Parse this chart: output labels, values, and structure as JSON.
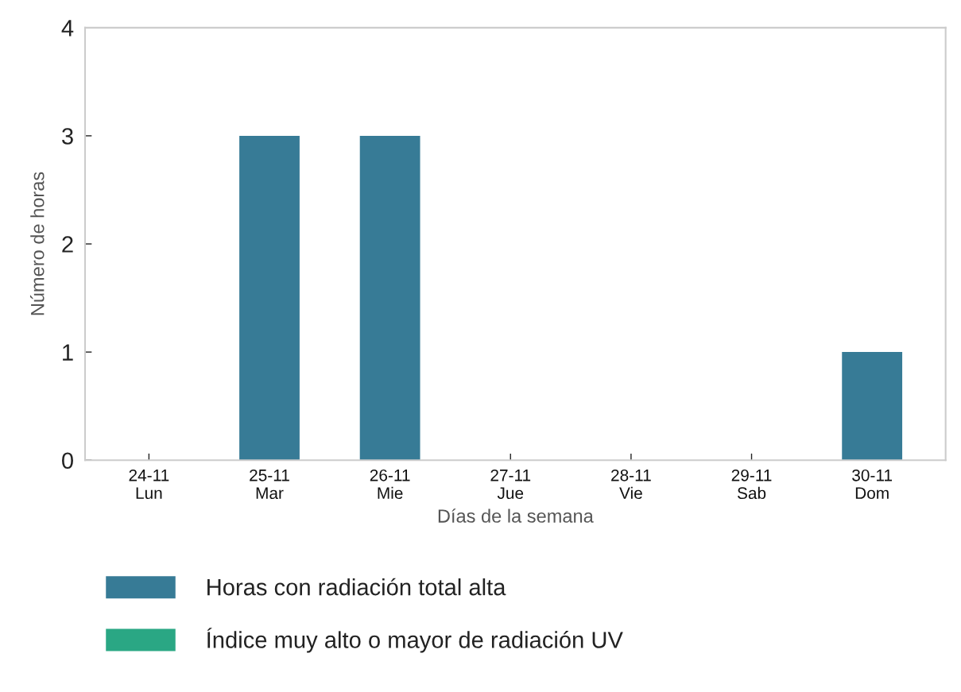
{
  "chart_data": {
    "type": "bar",
    "stacked": true,
    "xlabel": "Días de la semana",
    "ylabel": "Número de horas",
    "categories": [
      "24-11\nLun",
      "25-11\nMar",
      "26-11\nMie",
      "27-11\nJue",
      "28-11\nVie",
      "29-11\nSab",
      "30-11\nDom"
    ],
    "series": [
      {
        "name": "Horas con radiación total alta",
        "color": "#377b96",
        "values": [
          0,
          3,
          3,
          0,
          0,
          0,
          1
        ]
      },
      {
        "name": "Índice muy alto o mayor de radiación UV",
        "color": "#2aa784",
        "values": [
          0,
          0,
          0,
          0,
          0,
          0,
          0
        ]
      }
    ],
    "ylim": [
      0,
      4
    ],
    "yticks": [
      0,
      1,
      2,
      3,
      4
    ],
    "grid": false,
    "legend": "bottom"
  }
}
